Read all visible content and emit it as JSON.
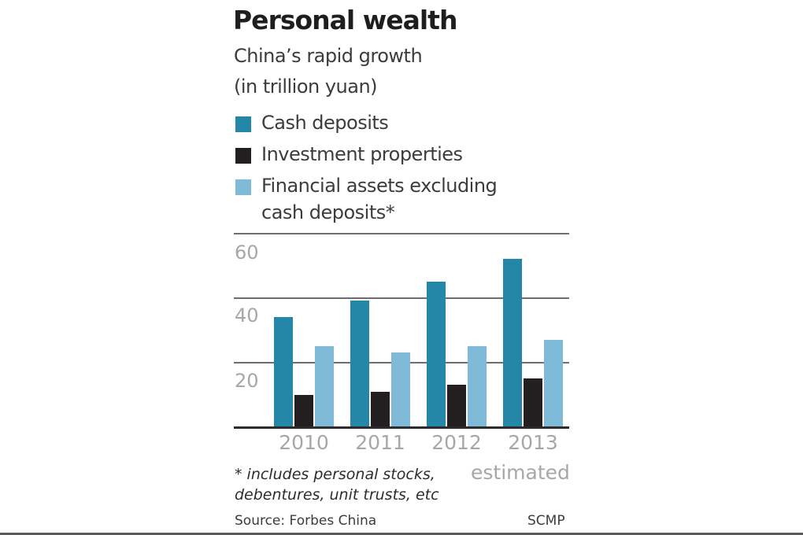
{
  "header": {
    "title": "Personal wealth",
    "subtitle_line1": "China’s rapid growth",
    "subtitle_line2": "(in trillion yuan)"
  },
  "legend": [
    {
      "label": "Cash deposits",
      "color": "#2487a8"
    },
    {
      "label": "Investment properties",
      "color": "#231f20"
    },
    {
      "label": "Financial assets excluding",
      "label_line2": "cash deposits*",
      "color": "#7fbad8"
    }
  ],
  "axis": {
    "yticks": [
      "60",
      "40",
      "20"
    ],
    "xticks": [
      "2010",
      "2011",
      "2012",
      "2013"
    ],
    "x_annotation": "estimated"
  },
  "footnote": {
    "line1": "* includes personal stocks,",
    "line2": "debentures, unit trusts, etc"
  },
  "source": "Source: Forbes China",
  "credit": "SCMP",
  "chart_data": {
    "type": "bar",
    "title": "Personal wealth",
    "subtitle": "China's rapid growth (in trillion yuan)",
    "xlabel": "",
    "ylabel": "trillion yuan",
    "categories": [
      "2010",
      "2011",
      "2012",
      "2013 estimated"
    ],
    "series": [
      {
        "name": "Cash deposits",
        "color": "#2487a8",
        "values": [
          34,
          39,
          45,
          52
        ]
      },
      {
        "name": "Investment properties",
        "color": "#231f20",
        "values": [
          10,
          11,
          13,
          15
        ]
      },
      {
        "name": "Financial assets excluding cash deposits*",
        "color": "#7fbad8",
        "values": [
          25,
          23,
          25,
          27
        ]
      }
    ],
    "ylim": [
      0,
      60
    ],
    "yticks": [
      20,
      40,
      60
    ],
    "grid": true,
    "legend_position": "top",
    "annotations": [
      "* includes personal stocks, debentures, unit trusts, etc",
      "2013 estimated"
    ],
    "source": "Source: Forbes China",
    "credit": "SCMP"
  }
}
